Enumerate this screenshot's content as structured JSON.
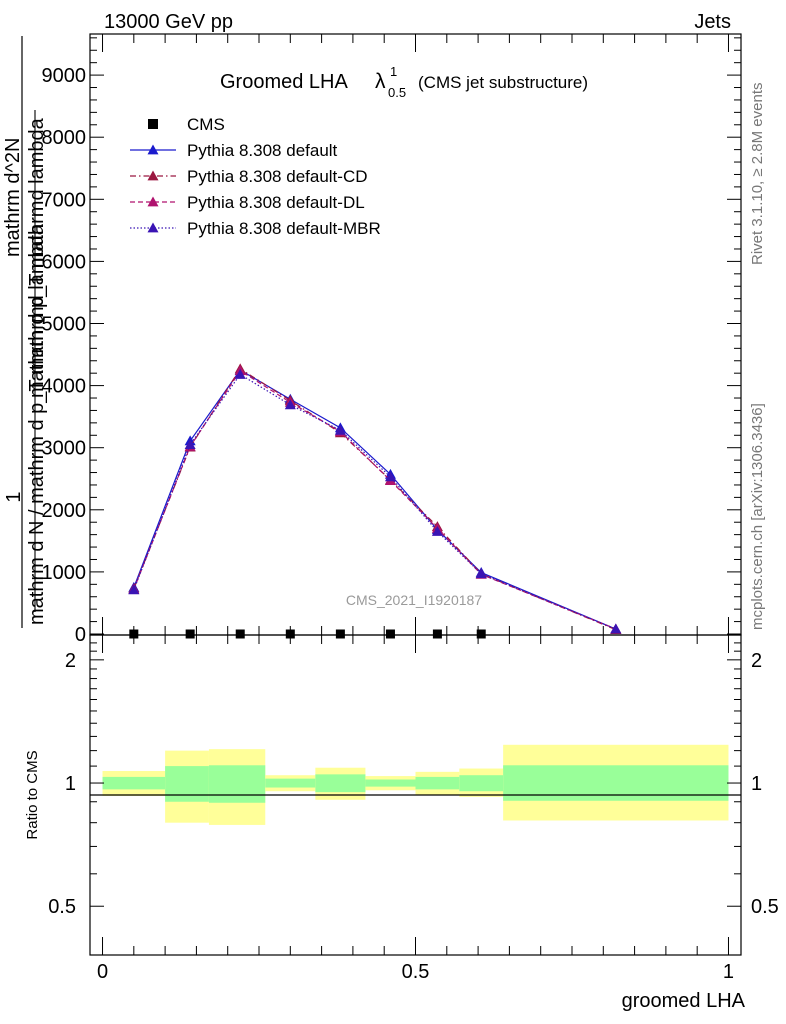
{
  "header": {
    "left": "13000 GeV pp",
    "right": "Jets"
  },
  "side_labels": {
    "rivet": "Rivet 3.1.10, ≥ 2.8M events",
    "mcplots": "mcplots.cern.ch [arXiv:1306.3436]"
  },
  "watermark": "CMS_2021_I1920187",
  "chart_data": [
    {
      "type": "line",
      "title": "Groomed LHA λ¹₀.₅ (CMS jet substructure)",
      "title_main": "Groomed LHA",
      "title_lambda": "λ",
      "title_sup": "1",
      "title_sub": "0.5",
      "title_note": "(CMS jet substructure)",
      "ylabel_parts": [
        "1",
        "mathrm d N / mathrm d p_T mathrmd lambda",
        "mathrm d^2N",
        "mathrm d p_T mathrmd lambda"
      ],
      "ylim": [
        0,
        9600
      ],
      "yticks": [
        0,
        1000,
        2000,
        3000,
        4000,
        5000,
        6000,
        7000,
        8000,
        9000
      ],
      "ytick_labels": [
        "0",
        "1000",
        "2000",
        "3000",
        "4000",
        "5000",
        "6000",
        "7000",
        "8000",
        "9000"
      ],
      "legend": [
        {
          "label": "CMS",
          "color": "#000000",
          "style": "marker"
        },
        {
          "label": "Pythia 8.308 default",
          "color": "#1a1acd",
          "style": "solid"
        },
        {
          "label": "Pythia 8.308 default-CD",
          "color": "#9b1740",
          "style": "dashdot"
        },
        {
          "label": "Pythia 8.308 default-DL",
          "color": "#b0126e",
          "style": "dashed"
        },
        {
          "label": "Pythia 8.308 default-MBR",
          "color": "#3a14b4",
          "style": "dotted"
        }
      ],
      "x": [
        0.05,
        0.14,
        0.22,
        0.3,
        0.38,
        0.46,
        0.535,
        0.605,
        0.82
      ],
      "cms_x": [
        0.05,
        0.14,
        0.22,
        0.3,
        0.38,
        0.46,
        0.535,
        0.605
      ],
      "cms_y": [
        0,
        0,
        0,
        0,
        0,
        0,
        0,
        0
      ],
      "series": [
        {
          "name": "Pythia 8.308 default",
          "values": [
            750,
            3110,
            4250,
            3780,
            3320,
            2570,
            1680,
            990,
            80
          ]
        },
        {
          "name": "Pythia 8.308 default-CD",
          "values": [
            730,
            3010,
            4270,
            3760,
            3240,
            2480,
            1730,
            970,
            70
          ]
        },
        {
          "name": "Pythia 8.308 default-DL",
          "values": [
            720,
            3020,
            4240,
            3730,
            3260,
            2470,
            1700,
            960,
            80
          ]
        },
        {
          "name": "Pythia 8.308 default-MBR",
          "values": [
            710,
            3050,
            4180,
            3690,
            3280,
            2530,
            1650,
            970,
            80
          ]
        }
      ]
    },
    {
      "type": "area",
      "ylabel": "Ratio to CMS",
      "xlabel": "groomed LHA",
      "xlim": [
        -0.02,
        1.02
      ],
      "ylim": [
        0.38,
        2.3
      ],
      "xticks": [
        0,
        0.5,
        1
      ],
      "xtick_labels": [
        "0",
        "0.5",
        "1"
      ],
      "yticks": [
        0.5,
        1,
        2
      ],
      "ytick_labels": [
        "0.5",
        "1",
        "2"
      ],
      "bands": [
        {
          "x0": 0.0,
          "x1": 0.1,
          "yellow": [
            0.93,
            1.07
          ],
          "green": [
            0.965,
            1.035
          ]
        },
        {
          "x0": 0.1,
          "x1": 0.17,
          "yellow": [
            0.8,
            1.2
          ],
          "green": [
            0.9,
            1.1
          ]
        },
        {
          "x0": 0.17,
          "x1": 0.26,
          "yellow": [
            0.79,
            1.21
          ],
          "green": [
            0.895,
            1.105
          ]
        },
        {
          "x0": 0.26,
          "x1": 0.34,
          "yellow": [
            0.955,
            1.045
          ],
          "green": [
            0.975,
            1.025
          ]
        },
        {
          "x0": 0.34,
          "x1": 0.42,
          "yellow": [
            0.91,
            1.09
          ],
          "green": [
            0.95,
            1.05
          ]
        },
        {
          "x0": 0.42,
          "x1": 0.5,
          "yellow": [
            0.96,
            1.04
          ],
          "green": [
            0.98,
            1.02
          ]
        },
        {
          "x0": 0.5,
          "x1": 0.57,
          "yellow": [
            0.935,
            1.065
          ],
          "green": [
            0.965,
            1.035
          ]
        },
        {
          "x0": 0.57,
          "x1": 0.64,
          "yellow": [
            0.925,
            1.085
          ],
          "green": [
            0.955,
            1.045
          ]
        },
        {
          "x0": 0.64,
          "x1": 1.0,
          "yellow": [
            0.81,
            1.24
          ],
          "green": [
            0.905,
            1.105
          ]
        }
      ]
    }
  ]
}
